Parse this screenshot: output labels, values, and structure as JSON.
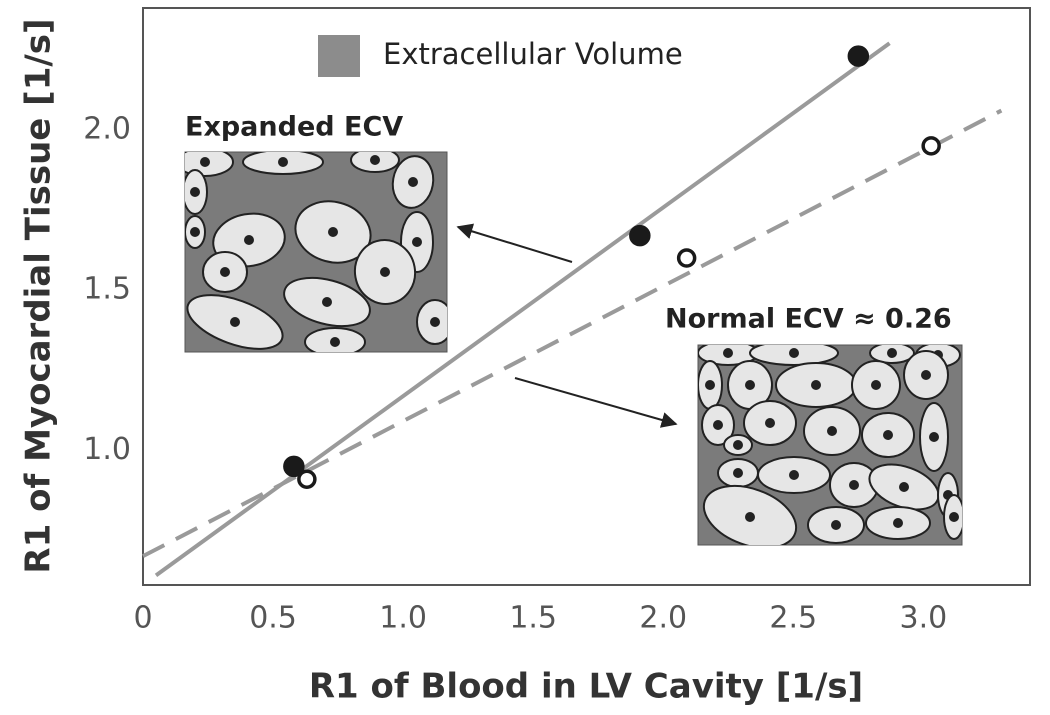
{
  "chart_data": {
    "type": "scatter",
    "legend": {
      "label": "Extracellular Volume",
      "color": "#8c8c8c"
    },
    "x_label": "R1 of Blood in LV Cavity [1/s]",
    "y_label": "R1 of Myocardial Tissue [1/s]",
    "annotations": [
      "Expanded ECV",
      "Normal ECV ≈ 0.26"
    ],
    "xlim": [
      0,
      3.41
    ],
    "ylim": [
      0.58,
      2.38
    ],
    "xticks": [
      {
        "value": 0,
        "label": "0"
      },
      0.5,
      {
        "value": 1,
        "label": "1.0"
      },
      1.5,
      {
        "value": 2,
        "label": "2.0"
      },
      2.5,
      {
        "value": 3,
        "label": "3.0"
      }
    ],
    "yticks": [
      {
        "value": 1,
        "label": "1.0"
      },
      1.5,
      {
        "value": 2,
        "label": "2.0"
      }
    ],
    "series": [
      {
        "x": [
          0.58,
          1.91,
          2.75
        ],
        "values": [
          0.95,
          1.67,
          2.23
        ],
        "color": "#1a1a1a",
        "marker": "filled"
      },
      {
        "x": [
          0.63,
          2.09,
          3.03
        ],
        "values": [
          0.91,
          1.6,
          1.95
        ],
        "color": "#1a1a1a",
        "marker": "open"
      }
    ],
    "lines": [
      {
        "x": [
          0.05,
          2.87
        ],
        "values": [
          0.61,
          2.27
        ],
        "color": "#9a9a9a",
        "style": "solid"
      },
      {
        "x": [
          0,
          3.3
        ],
        "values": [
          0.67,
          2.06
        ],
        "color": "#9a9a9a",
        "style": "dashed"
      }
    ]
  }
}
